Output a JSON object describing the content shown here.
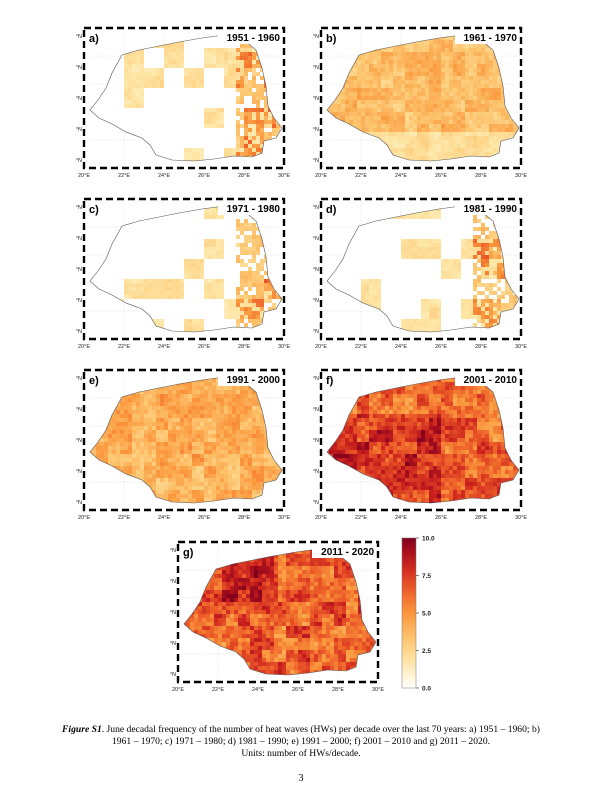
{
  "panels": [
    {
      "label": "a)",
      "title": "1951 - 1960",
      "level": 0.15
    },
    {
      "label": "b)",
      "title": "1961 - 1970",
      "level": 0.4
    },
    {
      "label": "c)",
      "title": "1971 - 1980",
      "level": 0.08
    },
    {
      "label": "d)",
      "title": "1981 - 1990",
      "level": 0.06
    },
    {
      "label": "e)",
      "title": "1991 - 2000",
      "level": 0.45
    },
    {
      "label": "f)",
      "title": "2001 - 2010",
      "level": 0.7
    },
    {
      "label": "g)",
      "title": "2011 - 2020",
      "level": 0.72
    }
  ],
  "lat_ticks": [
    "44°N",
    "45°N",
    "46°N",
    "47°N",
    "48°N"
  ],
  "lon_ticks": [
    "20°E",
    "22°E",
    "24°E",
    "26°E",
    "28°E",
    "30°E"
  ],
  "colorbar": {
    "ticks": [
      "10.0",
      "7.5",
      "5.0",
      "2.5",
      "0.0"
    ],
    "min": 0,
    "max": 10
  },
  "caption": {
    "fig_label": "Figure S1",
    "text": ". June decadal frequency of the number of heat waves (HWs) per decade over the last 70 years: a) 1951 – 1960; b) 1961 – 1970; c)  1971 – 1980; d) 1981 – 1990; e) 1991 – 2000; f) 2001 – 2010 and g) 2011 – 2020.",
    "units": "Units: number of HWs/decade."
  },
  "page_number": "3"
}
